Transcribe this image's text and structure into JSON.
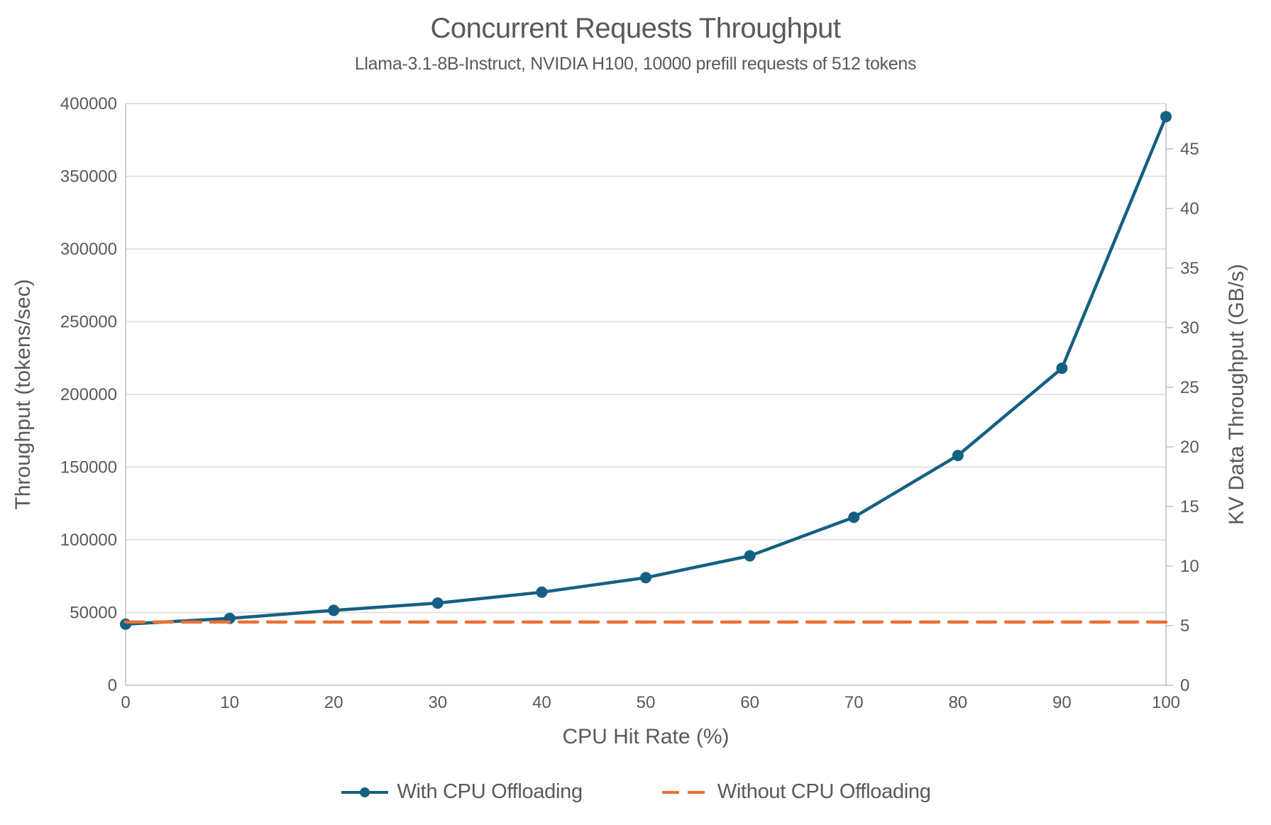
{
  "header": {
    "title": "Concurrent Requests Throughput",
    "subtitle": "Llama-3.1-8B-Instruct, NVIDIA H100, 10000 prefill requests of 512 tokens"
  },
  "colors": {
    "with_offloading_blue": "#156082",
    "without_offloading_orange": "#E97132",
    "gridline": "#D9D9D9",
    "axis_line": "#BFBFBF",
    "text_gray": "#595959"
  },
  "chart_data": {
    "type": "line",
    "title": "Concurrent Requests Throughput",
    "subtitle": "Llama-3.1-8B-Instruct, NVIDIA H100, 10000 prefill requests of 512 tokens",
    "xlabel": "CPU Hit Rate (%)",
    "ylabel_left": "Throughput (tokens/sec)",
    "ylabel_right": "KV Data Throughput (GB/s)",
    "grid": "horizontal",
    "legend_position": "bottom",
    "xlim": [
      0,
      100
    ],
    "x": [
      0,
      10,
      20,
      30,
      40,
      50,
      60,
      70,
      80,
      90,
      100
    ],
    "x_tick_labels": [
      "0",
      "10",
      "20",
      "30",
      "40",
      "50",
      "60",
      "70",
      "80",
      "90",
      "100"
    ],
    "left_axis": {
      "min": 0,
      "max": 400000,
      "ticks": [
        0,
        50000,
        100000,
        150000,
        200000,
        250000,
        300000,
        350000,
        400000
      ],
      "tick_labels": [
        "0",
        "50000",
        "100000",
        "150000",
        "200000",
        "250000",
        "300000",
        "350000",
        "400000"
      ]
    },
    "right_axis": {
      "ticks": [
        0,
        5,
        10,
        15,
        20,
        25,
        30,
        35,
        40,
        45
      ],
      "tick_labels": [
        "0",
        "5",
        "10",
        "15",
        "20",
        "25",
        "30",
        "35",
        "40",
        "45"
      ],
      "gb_per_token": 0.000122
    },
    "series": [
      {
        "name": "With CPU Offloading",
        "color": "#156082",
        "style": "solid",
        "markers": "circle",
        "values": [
          42000,
          46000,
          51500,
          56500,
          64000,
          74000,
          89000,
          115500,
          158000,
          218000,
          391000
        ]
      },
      {
        "name": "Without CPU Offloading",
        "color": "#E97132",
        "style": "dashed",
        "markers": "none",
        "values": [
          43500,
          43500,
          43500,
          43500,
          43500,
          43500,
          43500,
          43500,
          43500,
          43500,
          43500
        ]
      }
    ]
  }
}
